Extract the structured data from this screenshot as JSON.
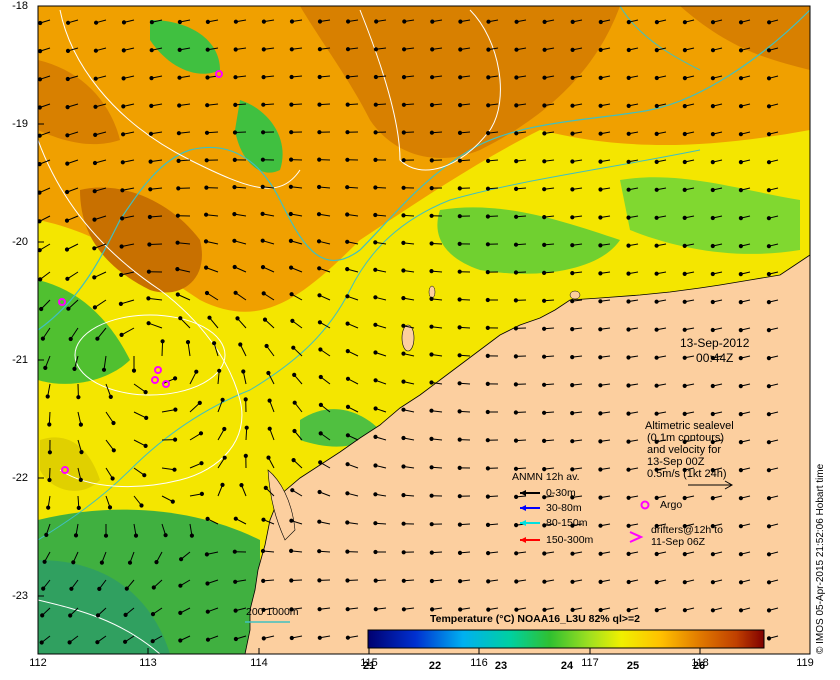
{
  "map": {
    "lat_ticks": [
      "-18",
      "-19",
      "-20",
      "-21",
      "-22",
      "-23"
    ],
    "lon_ticks": [
      "112",
      "113",
      "114",
      "115",
      "116",
      "117",
      "118",
      "119"
    ],
    "lon_range": [
      112,
      119
    ],
    "lat_range": [
      -18,
      -23.5
    ]
  },
  "timestamp": {
    "date": "13-Sep-2012",
    "time": "00:44Z"
  },
  "altimetry_note": [
    "Altimetric sealevel",
    "(0.1m contours)",
    "and velocity for",
    "13-Sep 00Z",
    "0.5m/s (1kt 24h)"
  ],
  "current_legend": {
    "title": "ANMN 12h av.",
    "items": [
      {
        "label": "0-30m",
        "color": "#000000"
      },
      {
        "label": "30-80m",
        "color": "#0000ff"
      },
      {
        "label": "80-150m",
        "color": "#00e0e0"
      },
      {
        "label": "150-300m",
        "color": "#ff0000"
      }
    ]
  },
  "argo_label": "Argo",
  "drifters_label": [
    "drifters@12h to",
    "11-Sep 06Z"
  ],
  "isobath_label": "200 1000m",
  "colorbar": {
    "title": "Temperature (°C) NOAA16_L3U 82% ql>=2",
    "ticks": [
      "21",
      "22",
      "23",
      "24",
      "25",
      "26"
    ]
  },
  "stamp": "© IMOS 05-Apr-2015 21:52:06 Hobart time",
  "colors": {
    "land": "#fccf9f",
    "isobath": "#40c0c0",
    "argo": "#ff00ff"
  }
}
